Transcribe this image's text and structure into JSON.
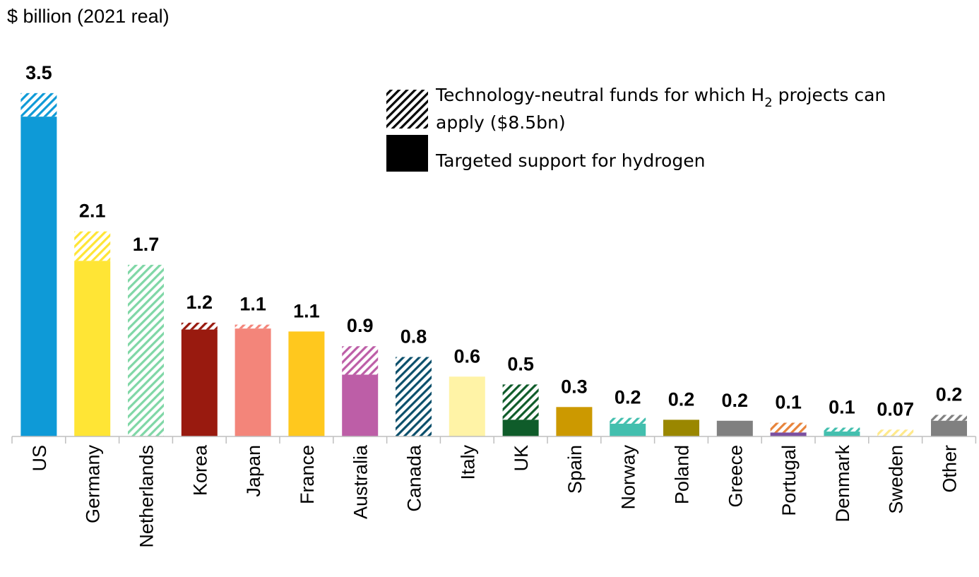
{
  "chart_data": {
    "type": "bar",
    "stacked": true,
    "ylabel": "$ billion (2021 real)",
    "ylim": [
      0,
      3.7
    ],
    "grid": false,
    "legend_placement": "top-right",
    "legend": [
      {
        "name": "Technology-neutral funds for which H2 projects can apply ($8.5bn)",
        "line1_pre": "Technology-neutral funds for which H",
        "line1_sub": "2",
        "line1_post": " projects can",
        "line2": "apply ($8.5bn)",
        "pattern": "hatched"
      },
      {
        "name": "Targeted support for hydrogen",
        "pattern": "solid"
      }
    ],
    "categories": [
      "US",
      "Germany",
      "Netherlands",
      "Korea",
      "Japan",
      "France",
      "Australia",
      "Canada",
      "Italy",
      "UK",
      "Spain",
      "Norway",
      "Poland",
      "Greece",
      "Portugal",
      "Denmark",
      "Sweden",
      "Other"
    ],
    "series": [
      {
        "name": "Targeted support for hydrogen",
        "values": [
          3.26,
          1.79,
          0,
          1.09,
          1.1,
          1.07,
          0.63,
          0,
          0.61,
          0.17,
          0.3,
          0.13,
          0.17,
          0.16,
          0.04,
          0.05,
          0,
          0.16
        ]
      },
      {
        "name": "Technology-neutral funds for which H2 projects can apply ($8.5bn)",
        "values": [
          0.24,
          0.3,
          1.75,
          0.07,
          0.04,
          0,
          0.29,
          0.81,
          0,
          0.36,
          0,
          0.06,
          0,
          0,
          0.1,
          0.04,
          0.07,
          0.06
        ]
      }
    ],
    "data_labels": [
      "3.5",
      "2.1",
      "1.7",
      "1.2",
      "1.1",
      "1.1",
      "0.9",
      "0.8",
      "0.6",
      "0.5",
      "0.3",
      "0.2",
      "0.2",
      "0.2",
      "0.1",
      "0.1",
      "0.07",
      "0.2"
    ],
    "colors_targeted": [
      "#0e9ad7",
      "#ffe535",
      "#7fd7a6",
      "#991a0f",
      "#f3857a",
      "#ffc81e",
      "#bd5ea7",
      "#0b4f6b",
      "#fff3a6",
      "#0f5c2a",
      "#cc9900",
      "#43bfae",
      "#9a8700",
      "#808080",
      "#7b4fa0",
      "#43bfae",
      "#fff3a6",
      "#808080"
    ],
    "colors_neutral": [
      "#0e9ad7",
      "#ffe535",
      "#7fd7a6",
      "#991a0f",
      "#f3857a",
      "#ffc81e",
      "#bd5ea7",
      "#0b4f6b",
      "#fff3a6",
      "#0f5c2a",
      "#cc9900",
      "#43bfae",
      "#9a8700",
      "#808080",
      "#e8833a",
      "#43bfae",
      "#ffe98a",
      "#808080"
    ]
  }
}
